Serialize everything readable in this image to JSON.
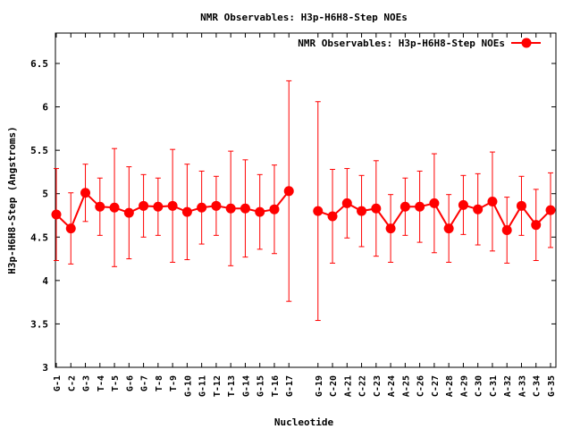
{
  "chart_data": {
    "type": "line",
    "title": "NMR Observables: H3p-H6H8-Step NOEs",
    "xlabel": "Nucleotide",
    "ylabel": "H3p-H6H8-Step (Angstroms)",
    "ylim": [
      3,
      6.85
    ],
    "yticks": [
      "3",
      "3.5",
      "4",
      "4.5",
      "5",
      "5.5",
      "6",
      "6.5"
    ],
    "grid": false,
    "legend_position": "top-right",
    "color": "#ff0000",
    "series": [
      {
        "name": "NMR Observables: H3p-H6H8-Step NOEs",
        "points": [
          {
            "x": "G-1",
            "y": 4.76,
            "err": 0.53
          },
          {
            "x": "C-2",
            "y": 4.6,
            "err": 0.41
          },
          {
            "x": "G-3",
            "y": 5.01,
            "err": 0.33
          },
          {
            "x": "T-4",
            "y": 4.85,
            "err": 0.33
          },
          {
            "x": "T-5",
            "y": 4.84,
            "err": 0.68
          },
          {
            "x": "G-6",
            "y": 4.78,
            "err": 0.53
          },
          {
            "x": "G-7",
            "y": 4.86,
            "err": 0.36
          },
          {
            "x": "T-8",
            "y": 4.85,
            "err": 0.33
          },
          {
            "x": "T-9",
            "y": 4.86,
            "err": 0.65
          },
          {
            "x": "G-10",
            "y": 4.79,
            "err": 0.55
          },
          {
            "x": "G-11",
            "y": 4.84,
            "err": 0.42
          },
          {
            "x": "T-12",
            "y": 4.86,
            "err": 0.34
          },
          {
            "x": "T-13",
            "y": 4.83,
            "err": 0.66
          },
          {
            "x": "G-14",
            "y": 4.83,
            "err": 0.56
          },
          {
            "x": "G-15",
            "y": 4.79,
            "err": 0.43
          },
          {
            "x": "T-16",
            "y": 4.82,
            "err": 0.51
          },
          {
            "x": "G-17",
            "y": 5.03,
            "err": 1.27
          },
          {
            "x": "G-19",
            "y": 4.8,
            "err": 1.26
          },
          {
            "x": "C-20",
            "y": 4.74,
            "err": 0.54
          },
          {
            "x": "A-21",
            "y": 4.89,
            "err": 0.4
          },
          {
            "x": "C-22",
            "y": 4.8,
            "err": 0.41
          },
          {
            "x": "C-23",
            "y": 4.83,
            "err": 0.55
          },
          {
            "x": "A-24",
            "y": 4.6,
            "err": 0.39
          },
          {
            "x": "A-25",
            "y": 4.85,
            "err": 0.33
          },
          {
            "x": "C-26",
            "y": 4.85,
            "err": 0.41
          },
          {
            "x": "C-27",
            "y": 4.89,
            "err": 0.57
          },
          {
            "x": "A-28",
            "y": 4.6,
            "err": 0.39
          },
          {
            "x": "A-29",
            "y": 4.87,
            "err": 0.34
          },
          {
            "x": "C-30",
            "y": 4.82,
            "err": 0.41
          },
          {
            "x": "C-31",
            "y": 4.91,
            "err": 0.57
          },
          {
            "x": "A-32",
            "y": 4.58,
            "err": 0.38
          },
          {
            "x": "A-33",
            "y": 4.86,
            "err": 0.34
          },
          {
            "x": "C-34",
            "y": 4.64,
            "err": 0.41
          },
          {
            "x": "G-35",
            "y": 4.81,
            "err": 0.43
          }
        ]
      }
    ]
  }
}
